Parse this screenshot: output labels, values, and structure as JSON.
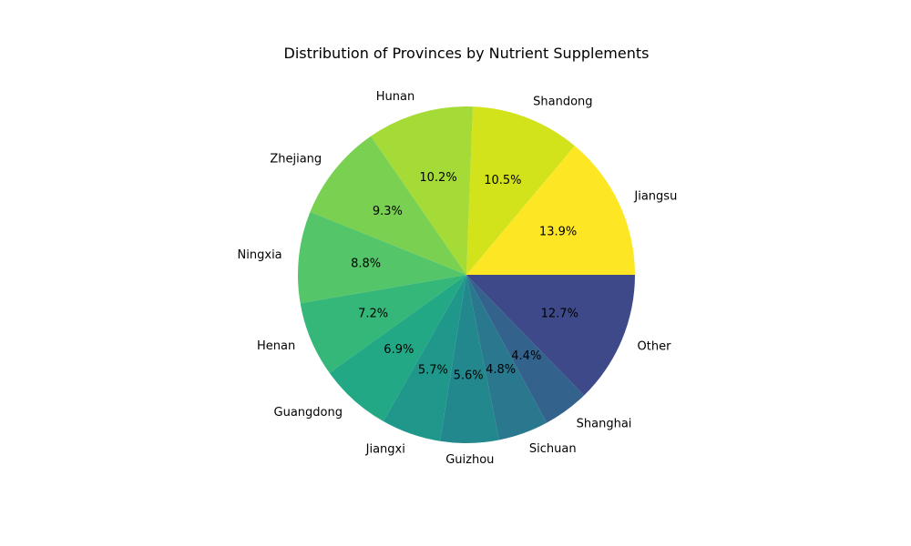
{
  "chart_data": {
    "type": "pie",
    "title": "Distribution of Provinces by Nutrient Supplements",
    "start_angle_deg": 0,
    "direction": "counterclockwise",
    "slices": [
      {
        "label": "Jiangsu",
        "value": 13.9,
        "pct_label": "13.9%",
        "color": "#fde725"
      },
      {
        "label": "Shandong",
        "value": 10.5,
        "pct_label": "10.5%",
        "color": "#d2e21b"
      },
      {
        "label": "Hunan",
        "value": 10.2,
        "pct_label": "10.2%",
        "color": "#a5db36"
      },
      {
        "label": "Zhejiang",
        "value": 9.3,
        "pct_label": "9.3%",
        "color": "#7ad151"
      },
      {
        "label": "Ningxia",
        "value": 8.8,
        "pct_label": "8.8%",
        "color": "#54c568"
      },
      {
        "label": "Henan",
        "value": 7.2,
        "pct_label": "7.2%",
        "color": "#35b779"
      },
      {
        "label": "Guangdong",
        "value": 6.9,
        "pct_label": "6.9%",
        "color": "#22a884"
      },
      {
        "label": "Jiangxi",
        "value": 5.7,
        "pct_label": "5.7%",
        "color": "#1f988b"
      },
      {
        "label": "Guizhou",
        "value": 5.6,
        "pct_label": "5.6%",
        "color": "#23888e"
      },
      {
        "label": "Sichuan",
        "value": 4.8,
        "pct_label": "4.8%",
        "color": "#2a788e"
      },
      {
        "label": "Shanghai",
        "value": 4.4,
        "pct_label": "4.4%",
        "color": "#33638d"
      },
      {
        "label": "Other",
        "value": 12.7,
        "pct_label": "12.7%",
        "color": "#3e4989"
      }
    ]
  }
}
